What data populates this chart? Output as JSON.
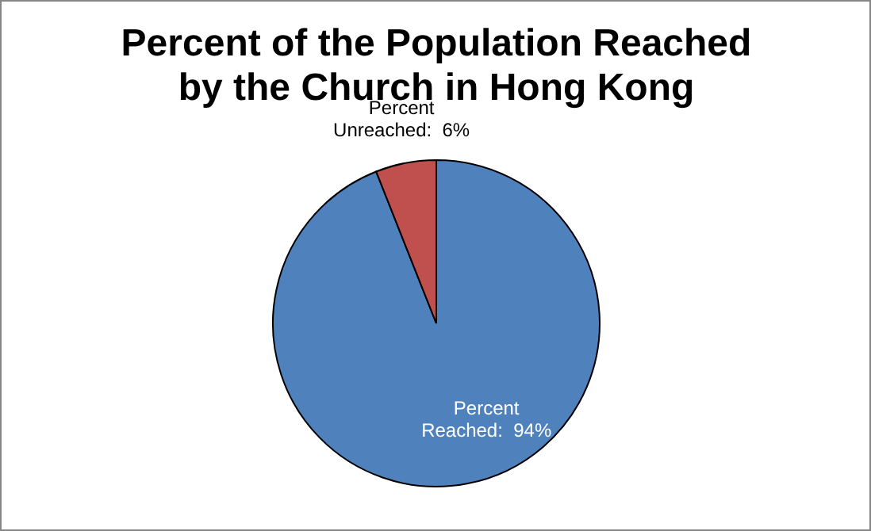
{
  "chart_data": {
    "type": "pie",
    "title": "Percent of the Population Reached by the Church in Hong Kong",
    "categories": [
      "Percent Reached",
      "Percent Unreached"
    ],
    "values": [
      94,
      6
    ],
    "value_labels": [
      "94%",
      "6%"
    ],
    "colors": [
      "#4f81bd",
      "#c0504d"
    ],
    "legend": false
  }
}
